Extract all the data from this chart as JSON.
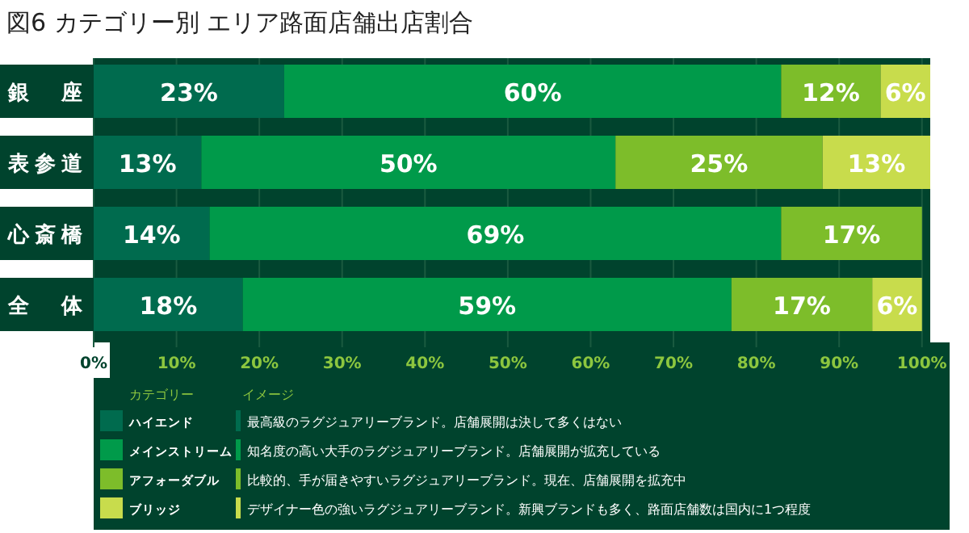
{
  "chart_data": {
    "type": "bar",
    "orientation": "horizontal",
    "stacked": true,
    "title": "図6 カテゴリー別 エリア路面店舗出店割合",
    "categories": [
      "銀　　座",
      "表 参 道",
      "心 斎 橋",
      "全　　体"
    ],
    "series": [
      {
        "name": "ハイエンド",
        "color": "#006b4e",
        "values": [
          23,
          13,
          14,
          18
        ],
        "value_labels": [
          "23%",
          "13%",
          "14%",
          "18%"
        ]
      },
      {
        "name": "メインストリーム",
        "color": "#009a4a",
        "values": [
          60,
          50,
          69,
          59
        ],
        "value_labels": [
          "60%",
          "50%",
          "69%",
          "59%"
        ]
      },
      {
        "name": "アフォーダブル",
        "color": "#7dbd2a",
        "values": [
          12,
          25,
          17,
          17
        ],
        "value_labels": [
          "12%",
          "25%",
          "17%",
          "17%"
        ]
      },
      {
        "name": "ブリッジ",
        "color": "#c8dc4c",
        "values": [
          6,
          13,
          null,
          6
        ],
        "value_labels": [
          "6%",
          "13%",
          null,
          "6%"
        ]
      }
    ],
    "xlim": [
      0,
      101
    ],
    "xticks": [
      {
        "value": 0,
        "label": "0%"
      },
      {
        "value": 10,
        "label": "10%"
      },
      {
        "value": 20,
        "label": "20%"
      },
      {
        "value": 30,
        "label": "30%"
      },
      {
        "value": 40,
        "label": "40%"
      },
      {
        "value": 50,
        "label": "50%"
      },
      {
        "value": 60,
        "label": "60%"
      },
      {
        "value": 70,
        "label": "70%"
      },
      {
        "value": 80,
        "label": "80%"
      },
      {
        "value": 90,
        "label": "90%"
      },
      {
        "value": 100,
        "label": "100%"
      }
    ],
    "grid": "x",
    "legend": "bottom",
    "legend_title": "カテゴリー",
    "annotations": [
      "イメージ",
      "最高級のラグジュアリーブランド。店舗展開は決して多くはない",
      "知名度の高い大手のラグジュアリーブランド。店舗展開が拡充している",
      "比較的、手が届きやすいラグジュアリーブランド。現在、店舗展開を拡充中",
      "デザイナー色の強いラグジュアリーブランド。新興ブランドも多く、路面店舗数は国内に1つ程度"
    ]
  }
}
